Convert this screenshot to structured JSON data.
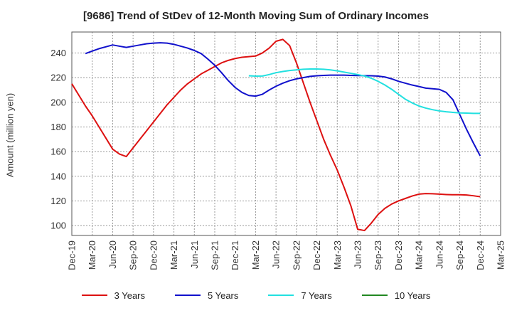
{
  "chart_data": {
    "type": "line",
    "title": "[9686]  Trend of StDev of 12-Month Moving Sum of Ordinary Incomes",
    "ylabel": "Amount (million yen)",
    "xlabel": "",
    "ylim": [
      92,
      257
    ],
    "yticks": [
      100,
      120,
      140,
      160,
      180,
      200,
      220,
      240
    ],
    "x_ticks": [
      "Dec-19",
      "Mar-20",
      "Jun-20",
      "Sep-20",
      "Dec-20",
      "Mar-21",
      "Jun-21",
      "Sep-21",
      "Dec-21",
      "Mar-22",
      "Jun-22",
      "Sep-22",
      "Dec-22",
      "Mar-23",
      "Jun-23",
      "Sep-23",
      "Dec-23",
      "Mar-24",
      "Jun-24",
      "Sep-24",
      "Dec-24",
      "Mar-25"
    ],
    "grid": true,
    "legend_position": "bottom",
    "series": [
      {
        "name": "3 Years",
        "color": "#dd1111",
        "points": [
          [
            "2019-12",
            215
          ],
          [
            "2020-01",
            206
          ],
          [
            "2020-02",
            197
          ],
          [
            "2020-03",
            189
          ],
          [
            "2020-04",
            180
          ],
          [
            "2020-05",
            171
          ],
          [
            "2020-06",
            162
          ],
          [
            "2020-07",
            158
          ],
          [
            "2020-08",
            156
          ],
          [
            "2020-09",
            163
          ],
          [
            "2020-10",
            170
          ],
          [
            "2020-11",
            177
          ],
          [
            "2020-12",
            184
          ],
          [
            "2021-01",
            191
          ],
          [
            "2021-02",
            198
          ],
          [
            "2021-03",
            204
          ],
          [
            "2021-04",
            210
          ],
          [
            "2021-05",
            215
          ],
          [
            "2021-06",
            219
          ],
          [
            "2021-07",
            223
          ],
          [
            "2021-08",
            226
          ],
          [
            "2021-09",
            229
          ],
          [
            "2021-10",
            232
          ],
          [
            "2021-11",
            234
          ],
          [
            "2021-12",
            235.5
          ],
          [
            "2022-01",
            236.5
          ],
          [
            "2022-02",
            237
          ],
          [
            "2022-03",
            237.5
          ],
          [
            "2022-04",
            240
          ],
          [
            "2022-05",
            244
          ],
          [
            "2022-06",
            249.5
          ],
          [
            "2022-07",
            251
          ],
          [
            "2022-08",
            246
          ],
          [
            "2022-09",
            232
          ],
          [
            "2022-10",
            216
          ],
          [
            "2022-11",
            200
          ],
          [
            "2022-12",
            185
          ],
          [
            "2023-01",
            170
          ],
          [
            "2023-02",
            157
          ],
          [
            "2023-03",
            145
          ],
          [
            "2023-04",
            131
          ],
          [
            "2023-05",
            116
          ],
          [
            "2023-06",
            97
          ],
          [
            "2023-07",
            96
          ],
          [
            "2023-08",
            102
          ],
          [
            "2023-09",
            109
          ],
          [
            "2023-10",
            114
          ],
          [
            "2023-11",
            117.5
          ],
          [
            "2023-12",
            120
          ],
          [
            "2024-01",
            122
          ],
          [
            "2024-02",
            124
          ],
          [
            "2024-03",
            125.5
          ],
          [
            "2024-04",
            126
          ],
          [
            "2024-05",
            125.8
          ],
          [
            "2024-06",
            125.5
          ],
          [
            "2024-07",
            125.2
          ],
          [
            "2024-08",
            125
          ],
          [
            "2024-09",
            125
          ],
          [
            "2024-10",
            124.8
          ],
          [
            "2024-11",
            124.2
          ],
          [
            "2024-12",
            123.4
          ]
        ]
      },
      {
        "name": "5 Years",
        "color": "#1111cc",
        "points": [
          [
            "2020-02",
            239.5
          ],
          [
            "2020-03",
            241.5
          ],
          [
            "2020-04",
            243.5
          ],
          [
            "2020-05",
            245
          ],
          [
            "2020-06",
            246.5
          ],
          [
            "2020-07",
            245.5
          ],
          [
            "2020-08",
            244.5
          ],
          [
            "2020-09",
            245.5
          ],
          [
            "2020-10",
            246.5
          ],
          [
            "2020-11",
            247.5
          ],
          [
            "2020-12",
            248
          ],
          [
            "2021-01",
            248.3
          ],
          [
            "2021-02",
            248
          ],
          [
            "2021-03",
            247
          ],
          [
            "2021-04",
            245.5
          ],
          [
            "2021-05",
            244
          ],
          [
            "2021-06",
            242
          ],
          [
            "2021-07",
            239.5
          ],
          [
            "2021-08",
            235
          ],
          [
            "2021-09",
            230
          ],
          [
            "2021-10",
            224
          ],
          [
            "2021-11",
            217.5
          ],
          [
            "2021-12",
            212
          ],
          [
            "2022-01",
            208
          ],
          [
            "2022-02",
            205.5
          ],
          [
            "2022-03",
            205
          ],
          [
            "2022-04",
            206.5
          ],
          [
            "2022-05",
            210
          ],
          [
            "2022-06",
            213
          ],
          [
            "2022-07",
            215.5
          ],
          [
            "2022-08",
            217.5
          ],
          [
            "2022-09",
            219
          ],
          [
            "2022-10",
            220
          ],
          [
            "2022-11",
            221
          ],
          [
            "2022-12",
            221.5
          ],
          [
            "2023-01",
            221.8
          ],
          [
            "2023-02",
            222
          ],
          [
            "2023-03",
            222
          ],
          [
            "2023-04",
            222
          ],
          [
            "2023-05",
            221.8
          ],
          [
            "2023-06",
            221.7
          ],
          [
            "2023-07",
            221.6
          ],
          [
            "2023-08",
            221.5
          ],
          [
            "2023-09",
            221.2
          ],
          [
            "2023-10",
            220.5
          ],
          [
            "2023-11",
            219
          ],
          [
            "2023-12",
            217
          ],
          [
            "2024-01",
            215.5
          ],
          [
            "2024-02",
            214
          ],
          [
            "2024-03",
            212.8
          ],
          [
            "2024-04",
            211.5
          ],
          [
            "2024-05",
            211
          ],
          [
            "2024-06",
            210.5
          ],
          [
            "2024-07",
            208
          ],
          [
            "2024-08",
            202
          ],
          [
            "2024-09",
            190
          ],
          [
            "2024-10",
            178
          ],
          [
            "2024-11",
            167
          ],
          [
            "2024-12",
            156.5
          ]
        ]
      },
      {
        "name": "7 Years",
        "color": "#22e0e0",
        "points": [
          [
            "2022-02",
            221.5
          ],
          [
            "2022-03",
            221.2
          ],
          [
            "2022-04",
            221.3
          ],
          [
            "2022-05",
            222.5
          ],
          [
            "2022-06",
            224
          ],
          [
            "2022-07",
            225
          ],
          [
            "2022-08",
            225.8
          ],
          [
            "2022-09",
            226.3
          ],
          [
            "2022-10",
            226.8
          ],
          [
            "2022-11",
            227
          ],
          [
            "2022-12",
            227
          ],
          [
            "2023-01",
            226.8
          ],
          [
            "2023-02",
            226.3
          ],
          [
            "2023-03",
            225.5
          ],
          [
            "2023-04",
            224.5
          ],
          [
            "2023-05",
            223.5
          ],
          [
            "2023-06",
            222.5
          ],
          [
            "2023-07",
            221.3
          ],
          [
            "2023-08",
            219.5
          ],
          [
            "2023-09",
            217
          ],
          [
            "2023-10",
            214
          ],
          [
            "2023-11",
            210.5
          ],
          [
            "2023-12",
            206.5
          ],
          [
            "2024-01",
            202.5
          ],
          [
            "2024-02",
            199.5
          ],
          [
            "2024-03",
            197
          ],
          [
            "2024-04",
            195.3
          ],
          [
            "2024-05",
            194
          ],
          [
            "2024-06",
            193
          ],
          [
            "2024-07",
            192.3
          ],
          [
            "2024-08",
            191.8
          ],
          [
            "2024-09",
            191.4
          ],
          [
            "2024-10",
            191.2
          ],
          [
            "2024-11",
            191
          ],
          [
            "2024-12",
            191
          ]
        ]
      },
      {
        "name": "10 Years",
        "color": "#228822",
        "points": []
      }
    ]
  }
}
